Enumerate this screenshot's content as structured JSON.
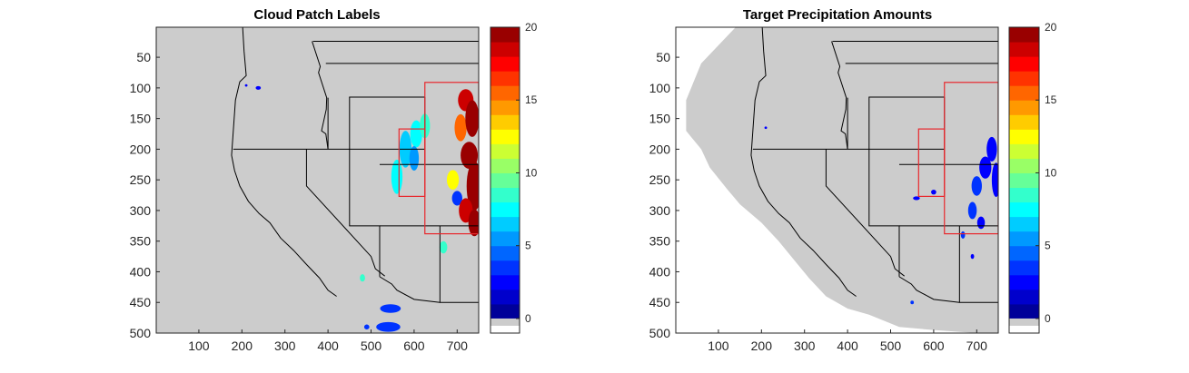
{
  "colors": {
    "land": "#cccccc",
    "background": "#ffffff",
    "box": "#e8282d",
    "border": "#000000"
  },
  "chart_data": [
    {
      "type": "heatmap",
      "title": "Cloud Patch Labels",
      "xlim": [
        1,
        750
      ],
      "ylim": [
        1,
        500
      ],
      "y_reversed": true,
      "xticks": [
        100,
        200,
        300,
        400,
        500,
        600,
        700
      ],
      "yticks": [
        50,
        100,
        150,
        200,
        250,
        300,
        350,
        400,
        450,
        500
      ],
      "colorbar": {
        "min": -1,
        "max": 20,
        "ticks": [
          0,
          5,
          10,
          15,
          20
        ],
        "colormap": "jet"
      },
      "red_boxes": [
        {
          "x": [
            565,
            625
          ],
          "y": [
            167,
            277
          ]
        },
        {
          "x": [
            625,
            750
          ],
          "y": [
            91,
            338
          ]
        }
      ]
    },
    {
      "type": "heatmap",
      "title": "Target Precipitation Amounts",
      "xlim": [
        1,
        750
      ],
      "ylim": [
        1,
        500
      ],
      "y_reversed": true,
      "xticks": [
        100,
        200,
        300,
        400,
        500,
        600,
        700
      ],
      "yticks": [
        50,
        100,
        150,
        200,
        250,
        300,
        350,
        400,
        450,
        500
      ],
      "colorbar": {
        "min": -1,
        "max": 20,
        "ticks": [
          0,
          5,
          10,
          15,
          20
        ],
        "colormap": "jet"
      },
      "red_boxes": [
        {
          "x": [
            565,
            625
          ],
          "y": [
            167,
            277
          ]
        },
        {
          "x": [
            625,
            750
          ],
          "y": [
            91,
            338
          ]
        }
      ]
    }
  ]
}
